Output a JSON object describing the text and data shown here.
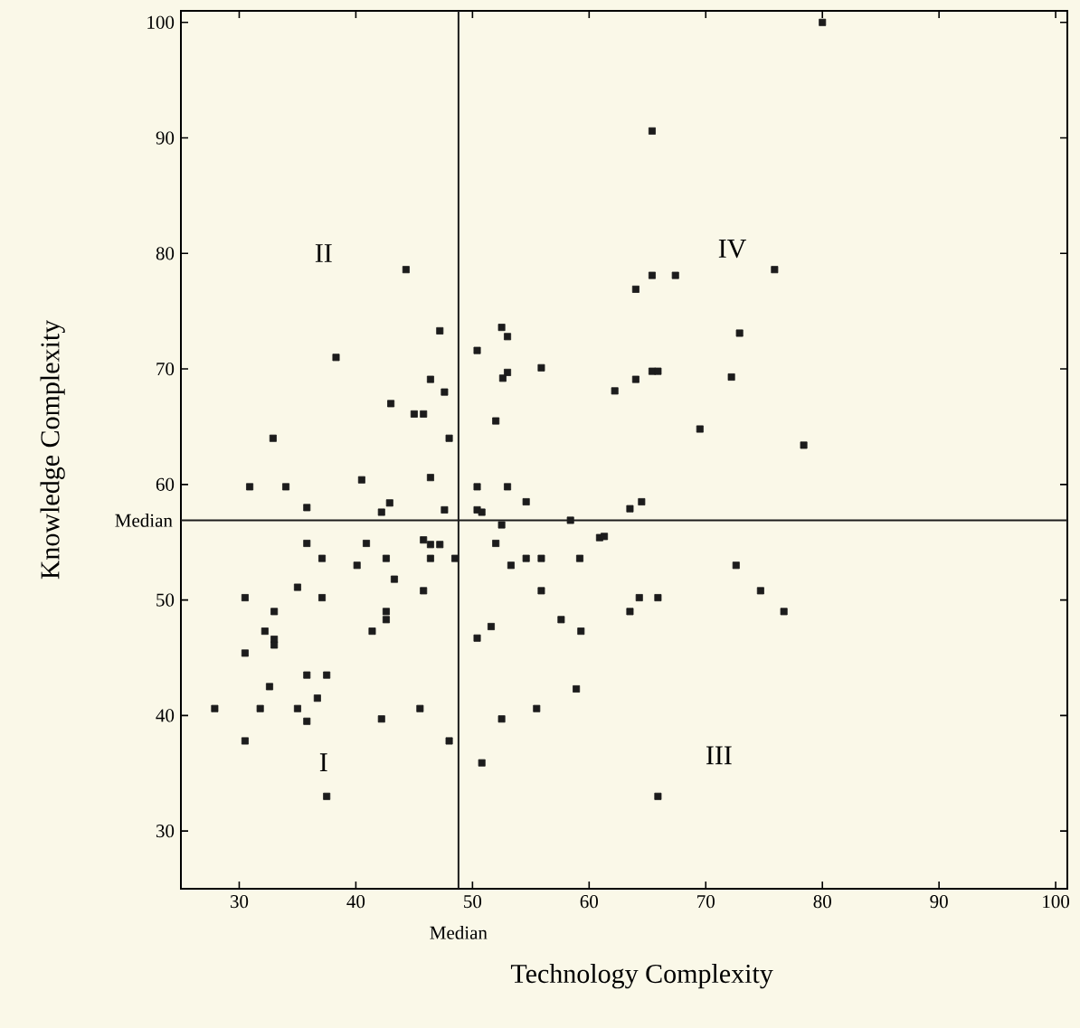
{
  "chart_data": {
    "type": "scatter",
    "xlabel": "Technology Complexity",
    "ylabel": "Knowledge Complexity",
    "x": [
      80.0,
      65.4,
      44.3,
      64.0,
      65.4,
      67.4,
      75.9,
      72.9,
      38.3,
      47.2,
      52.5,
      53.0,
      50.4,
      55.9,
      53.0,
      52.6,
      46.4,
      47.6,
      64.0,
      65.4,
      65.9,
      62.2,
      72.2,
      45.0,
      45.8,
      43.0,
      52.0,
      32.9,
      48.0,
      69.5,
      78.4,
      40.5,
      30.9,
      34.0,
      46.4,
      50.4,
      53.0,
      35.8,
      42.9,
      42.2,
      47.6,
      50.4,
      50.8,
      54.6,
      64.5,
      63.5,
      58.4,
      52.5,
      35.8,
      37.1,
      40.9,
      40.1,
      42.6,
      45.8,
      46.4,
      47.2,
      46.4,
      48.5,
      52.0,
      53.3,
      54.6,
      55.9,
      59.2,
      60.9,
      61.3,
      43.3,
      35.0,
      45.8,
      55.9,
      30.5,
      37.1,
      33.0,
      42.6,
      42.6,
      32.2,
      41.4,
      51.6,
      57.6,
      59.3,
      50.4,
      33.0,
      33.0,
      30.5,
      63.5,
      64.3,
      65.9,
      72.6,
      74.7,
      76.7,
      35.8,
      37.5,
      32.6,
      58.9,
      27.9,
      31.8,
      35.0,
      36.7,
      35.8,
      42.2,
      45.5,
      52.5,
      55.5,
      30.5,
      48.0,
      50.8,
      37.5,
      65.9
    ],
    "values": [
      100.0,
      90.6,
      78.6,
      76.9,
      78.1,
      78.1,
      78.6,
      73.1,
      71.0,
      73.3,
      73.6,
      72.8,
      71.6,
      70.1,
      69.7,
      69.2,
      69.1,
      68.0,
      69.1,
      69.8,
      69.8,
      68.1,
      69.3,
      66.1,
      66.1,
      67.0,
      65.5,
      64.0,
      64.0,
      64.8,
      63.4,
      60.4,
      59.8,
      59.8,
      60.6,
      59.8,
      59.8,
      58.0,
      58.4,
      57.6,
      57.8,
      57.8,
      57.6,
      58.5,
      58.5,
      57.9,
      56.9,
      56.5,
      54.9,
      53.6,
      54.9,
      53.0,
      53.6,
      55.2,
      54.8,
      54.8,
      53.6,
      53.6,
      54.9,
      53.0,
      53.6,
      53.6,
      53.6,
      55.4,
      55.5,
      51.8,
      51.1,
      50.8,
      50.8,
      50.2,
      50.2,
      49.0,
      49.0,
      48.3,
      47.3,
      47.3,
      47.7,
      48.3,
      47.3,
      46.7,
      46.6,
      46.1,
      45.4,
      49.0,
      50.2,
      50.2,
      53.0,
      50.8,
      49.0,
      43.5,
      43.5,
      42.5,
      42.3,
      40.6,
      40.6,
      40.6,
      41.5,
      39.5,
      39.7,
      40.6,
      39.7,
      40.6,
      37.8,
      37.8,
      35.9,
      33.0,
      33.0
    ],
    "color": "#1c1c1c",
    "marker": "square",
    "xlim": [
      25,
      101
    ],
    "ylim": [
      25,
      101
    ],
    "xticks": [
      30,
      40,
      50,
      60,
      70,
      80,
      90,
      100
    ],
    "yticks": [
      30,
      40,
      50,
      60,
      70,
      80,
      90,
      100
    ],
    "ref_lines": [
      {
        "axis": "x",
        "value": 48.8,
        "label": "Median",
        "color": "#1c1c1c"
      },
      {
        "axis": "y",
        "value": 56.9,
        "label": "Median",
        "color": "#1c1c1c"
      }
    ],
    "annotations": [
      "II",
      "IV",
      "I",
      "III"
    ]
  }
}
